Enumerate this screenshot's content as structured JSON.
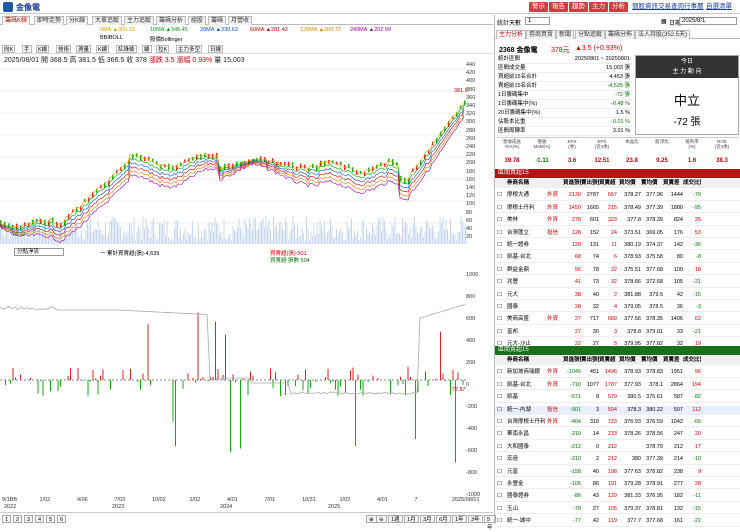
{
  "app": {
    "title": "金像電"
  },
  "topbar": {
    "buttons": [
      "警示",
      "報告",
      "趨勢",
      "主力",
      "分析"
    ],
    "links": [
      "個股資訊",
      "交易查詢",
      "行事曆",
      "自選清單"
    ]
  },
  "tabs": [
    "籌碼K線",
    "即時走勢",
    "分K線",
    "大單追蹤",
    "主力追蹤",
    "籌碼分析",
    "組股",
    "籌碼",
    "月營收"
  ],
  "ma": [
    {
      "label": "5MA",
      "val": "▲360.13",
      "color": "#e0a000"
    },
    {
      "label": "10MA",
      "val": "▲345.45",
      "color": "#00a000"
    },
    {
      "label": "20MA",
      "val": "▲330.63",
      "color": "#0050d0"
    },
    {
      "label": "60MA",
      "val": "▲281.42",
      "color": "#c00000"
    },
    {
      "label": "120MA",
      "val": "▲260.72",
      "color": "#e08000"
    },
    {
      "label": "240MA",
      "val": "▲202.99",
      "color": "#a000a0"
    },
    {
      "label": "BBIBOLL",
      "val": "",
      "color": "#000"
    },
    {
      "label": "股價Bollinger",
      "val": "",
      "color": "#000"
    }
  ],
  "tools": [
    "向K",
    "手",
    "K線",
    "技術",
    "測量",
    "K線",
    "紅綠條",
    "線",
    "拉K",
    "主力多空",
    "日線"
  ],
  "quote": {
    "date": "2025/08/01",
    "open": "開 368.5",
    "high": "高 381.5",
    "low": "低 366.5",
    "close": "收 378",
    "chg": "漲跌 3.5",
    "pct": "漲幅 0.93%",
    "vol": "量 15,003"
  },
  "yaxis": [
    "440",
    "420",
    "400",
    "380",
    "360",
    "340",
    "320",
    "300",
    "280",
    "260",
    "240",
    "220",
    "200",
    "180",
    "160",
    "140",
    "120",
    "100",
    "80",
    "60",
    "40",
    "20"
  ],
  "price_marker": "381.5",
  "lo_marker": "78.02",
  "ind": {
    "select": "分點淨流",
    "label1": "一 累計買賣超(張)-4,639",
    "label2": "買賣超(張)-501",
    "label3": "買賣超 張數 504",
    "ylabels": [
      "1000",
      "800",
      "600",
      "400",
      "200",
      "0",
      "-200",
      "-400",
      "-600",
      "-800",
      "-1000"
    ],
    "marker": "-77.87"
  },
  "xaxis": [
    "9/1BB",
    "1/02",
    "4/06",
    "7/03",
    "10/02",
    "1/02",
    "4/01",
    "7/01",
    "10/31",
    "1/02",
    "4/01",
    "7",
    "2025/08/01"
  ],
  "xyears": [
    "2022",
    "2023",
    "2024",
    "2025"
  ],
  "bottom": {
    "pages": [
      "1",
      "2",
      "3",
      "4",
      "5",
      "6"
    ],
    "periods": [
      "1週",
      "1月",
      "3月",
      "6月",
      "1年",
      "3年",
      "5年"
    ]
  },
  "right": {
    "period_label": "統計天數",
    "period_val": "1",
    "date_label": "日期",
    "date_val": "2025/8/1",
    "tabs": [
      "主力分析",
      "券商買賣",
      "新聞",
      "分點追蹤",
      "籌碼分佈",
      "法人持股(352.5天)"
    ],
    "stock": "2368 金像電",
    "price": "378元",
    "chg": "▲3.5 (+0.93%)",
    "stats": [
      [
        "統計區間",
        "20250801 ~ 20250801"
      ],
      [
        "區間成交量",
        "15,003 張"
      ],
      [
        "買超前15名合計",
        "4,453 張"
      ],
      [
        "賣超前15名合計",
        "-4,525 張"
      ],
      [
        "1日籌碼集中",
        "-72 張"
      ],
      [
        "1日籌碼集中(%)",
        "-0.48 %"
      ],
      [
        "20日籌碼集中(%)",
        "1.5 %"
      ],
      [
        "佔股本比重",
        "-0.01 %"
      ],
      [
        "區間周轉率",
        "3.01 %"
      ]
    ],
    "today": "今日",
    "force": "主 力 動 向",
    "neutral": "中立",
    "force_val": "-72 張",
    "metrics_h": [
      "營收成長\nYoY(%)",
      "營收\nMoM(%)",
      "EPS\n(季)",
      "EPS\n(近4季)",
      "本益比",
      "股淨比",
      "殖利率\n(%)",
      "ROE\n(近4季)"
    ],
    "metrics": [
      "39.78",
      "-1.11",
      "3.6",
      "12.51",
      "23.8",
      "9.25",
      "1.6",
      "38.3"
    ],
    "buy_title": "區間買超15",
    "sell_title": "區間賣超15",
    "cols": [
      "券商名稱",
      "",
      "買進張數",
      "賣出張數",
      "買賣超",
      "買均價",
      "賣均價",
      "買賣差",
      "成交比重"
    ],
    "buy": [
      [
        "摩根大通",
        "外資",
        2130,
        2787,
        657,
        378.27,
        377.96,
        1444,
        -79
      ],
      [
        "摩根士丹利",
        "外資",
        1450,
        1665,
        215,
        378.49,
        377.39,
        1880,
        -95
      ],
      [
        "美林",
        "外資",
        278,
        601,
        323,
        377.8,
        378.39,
        824,
        25
      ],
      [
        "台灣匯立",
        "投信",
        128,
        152,
        24,
        373.51,
        369.05,
        176,
        53
      ],
      [
        "統一證券",
        "",
        120,
        131,
        11,
        380.19,
        374.37,
        142,
        -36
      ],
      [
        "凱基-台北",
        "",
        68,
        74,
        6,
        378.93,
        375.58,
        80,
        -8
      ],
      [
        "群益金鼎",
        "",
        56,
        78,
        22,
        375.51,
        377.68,
        100,
        18
      ],
      [
        "兆豐",
        "",
        41,
        73,
        32,
        378.66,
        372.68,
        105,
        -21
      ],
      [
        "元大",
        "",
        38,
        40,
        2,
        381.88,
        379.5,
        42,
        -15
      ],
      [
        "國泰",
        "",
        28,
        32,
        4,
        379.05,
        378.5,
        36,
        -3
      ],
      [
        "美商高盛",
        "外資",
        27,
        717,
        689,
        377.56,
        378.35,
        1406,
        62
      ],
      [
        "富邦",
        "",
        27,
        30,
        3,
        378.8,
        379.01,
        33,
        -21
      ],
      [
        "元大-沙止",
        "",
        22,
        27,
        5,
        379.95,
        377.82,
        32,
        19
      ]
    ],
    "sell": [
      [
        "新加坡商瑞銀",
        "外資",
        -1045,
        451,
        1496,
        378.93,
        378.83,
        1951,
        96
      ],
      [
        "凱基-台北",
        "外資",
        -710,
        1077,
        1787,
        377.93,
        378.1,
        2864,
        194
      ],
      [
        "凱基",
        "",
        -571,
        8,
        579,
        380.5,
        376.61,
        587,
        -82
      ],
      [
        "統一-內湖",
        "投信",
        -501,
        3,
        504,
        378.3,
        380.22,
        507,
        112
      ],
      [
        "台灣摩根士丹利",
        "外資",
        -404,
        319,
        723,
        376.93,
        376.59,
        1042,
        -66
      ],
      [
        "華南永昌",
        "",
        -219,
        14,
        233,
        378.26,
        378.56,
        247,
        20
      ],
      [
        "大和國泰",
        "",
        -212,
        0,
        212,
        "",
        378.79,
        212,
        17
      ],
      [
        "宏遠",
        "",
        -210,
        2,
        212,
        380,
        377.39,
        214,
        -10
      ],
      [
        "元富",
        "",
        -158,
        40,
        198,
        377.63,
        378.82,
        238,
        9
      ],
      [
        "永豐金",
        "",
        -105,
        86,
        191,
        379.28,
        378.91,
        277,
        28
      ],
      [
        "國泰證券",
        "",
        -86,
        43,
        129,
        381.33,
        376.95,
        182,
        -11
      ],
      [
        "玉山",
        "",
        -78,
        27,
        105,
        379.37,
        378.81,
        132,
        -15
      ],
      [
        "統一-城中",
        "",
        -77,
        42,
        119,
        377.7,
        377.68,
        161,
        -22
      ]
    ]
  }
}
